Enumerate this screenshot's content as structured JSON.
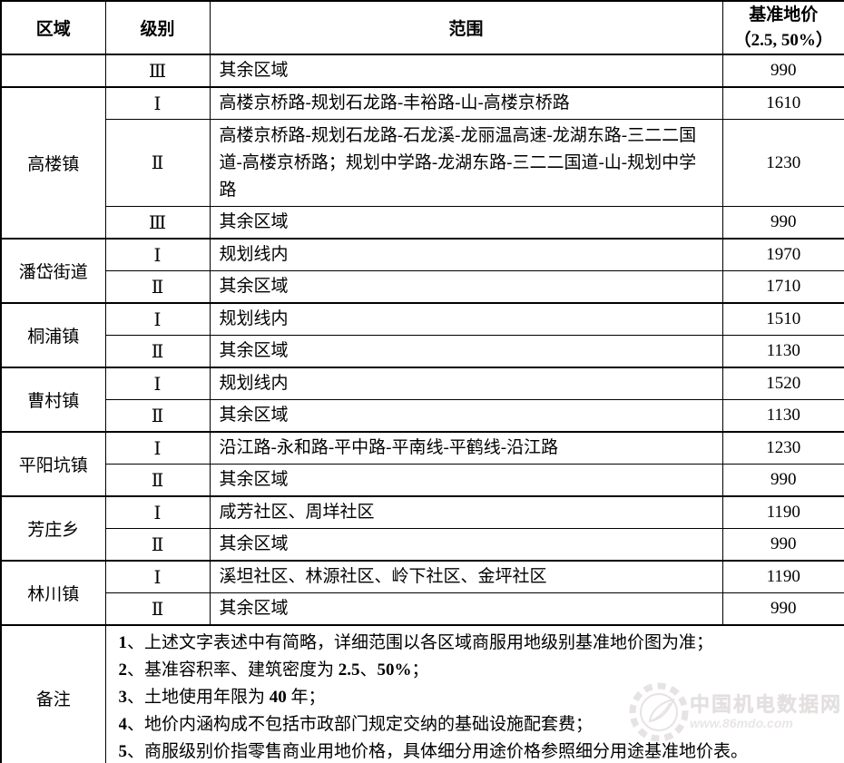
{
  "header": {
    "region": "区域",
    "level": "级别",
    "range": "范围",
    "price_line1": "基准地价",
    "price_line2": "（2.5, 50%）"
  },
  "groups": [
    {
      "region": "",
      "rows": [
        {
          "level": "Ⅲ",
          "range": "其余区域",
          "price": "990"
        }
      ]
    },
    {
      "region": "高楼镇",
      "rows": [
        {
          "level": "Ⅰ",
          "range": "高楼京桥路-规划石龙路-丰裕路-山-高楼京桥路",
          "price": "1610"
        },
        {
          "level": "Ⅱ",
          "range": "高楼京桥路-规划石龙路-石龙溪-龙丽温高速-龙湖东路-三二二国道-高楼京桥路；规划中学路-龙湖东路-三二二国道-山-规划中学路",
          "price": "1230",
          "tall": true
        },
        {
          "level": "Ⅲ",
          "range": "其余区域",
          "price": "990"
        }
      ]
    },
    {
      "region": "潘岱街道",
      "rows": [
        {
          "level": "Ⅰ",
          "range": "规划线内",
          "price": "1970"
        },
        {
          "level": "Ⅱ",
          "range": "其余区域",
          "price": "1710"
        }
      ]
    },
    {
      "region": "桐浦镇",
      "rows": [
        {
          "level": "Ⅰ",
          "range": "规划线内",
          "price": "1510"
        },
        {
          "level": "Ⅱ",
          "range": "其余区域",
          "price": "1130"
        }
      ]
    },
    {
      "region": "曹村镇",
      "rows": [
        {
          "level": "Ⅰ",
          "range": "规划线内",
          "price": "1520"
        },
        {
          "level": "Ⅱ",
          "range": "其余区域",
          "price": "1130"
        }
      ]
    },
    {
      "region": "平阳坑镇",
      "rows": [
        {
          "level": "Ⅰ",
          "range": "沿江路-永和路-平中路-平南线-平鹤线-沿江路",
          "price": "1230"
        },
        {
          "level": "Ⅱ",
          "range": "其余区域",
          "price": "990"
        }
      ]
    },
    {
      "region": "芳庄乡",
      "rows": [
        {
          "level": "Ⅰ",
          "range": "咸芳社区、周垟社区",
          "price": "1190"
        },
        {
          "level": "Ⅱ",
          "range": "其余区域",
          "price": "990"
        }
      ]
    },
    {
      "region": "林川镇",
      "rows": [
        {
          "level": "Ⅰ",
          "range": "溪坦社区、林源社区、岭下社区、金坪社区",
          "price": "1190"
        },
        {
          "level": "Ⅱ",
          "range": "其余区域",
          "price": "990"
        }
      ]
    }
  ],
  "remarks": {
    "label": "备注",
    "items": [
      "1、上述文字表述中有简略，详细范围以各区域商服用地级别基准地价图为准；",
      "2、基准容积率、建筑密度为 2.5、50%；",
      "3、土地使用年限为 40 年；",
      "4、地价内涵构成不包括市政部门规定交纳的基础设施配套费；",
      "5、商服级别价指零售商业用地价格，具体细分用途价格参照细分用途基准地价表。"
    ]
  },
  "watermark": {
    "site_name": "中国机电数据网",
    "site_url": "www.86mdo.com"
  }
}
